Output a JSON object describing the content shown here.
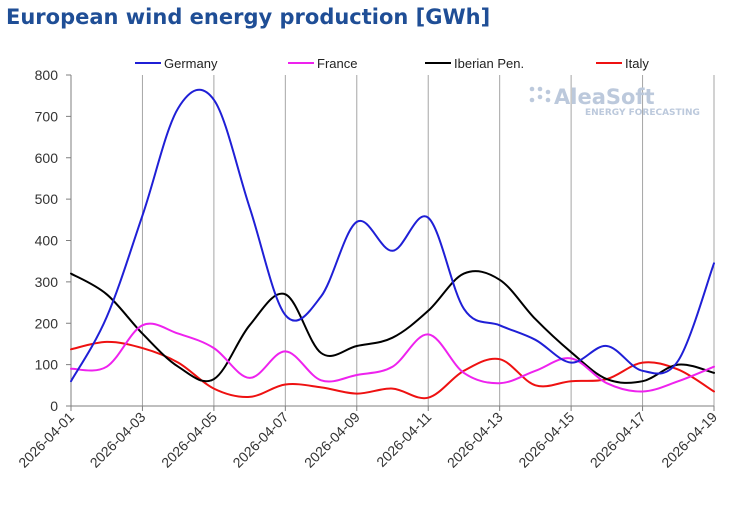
{
  "chart_data": {
    "type": "line",
    "title": "European wind energy production [GWh]",
    "xlabel": "",
    "ylabel": "",
    "ylim": [
      0,
      800
    ],
    "yticks": [
      0,
      100,
      200,
      300,
      400,
      500,
      600,
      700,
      800
    ],
    "xrange": [
      0,
      18
    ],
    "grid": "vertical",
    "legend_position": "top",
    "x_tick_labels": [
      "2026-04-01",
      "2026-04-03",
      "2026-04-05",
      "2026-04-07",
      "2026-04-09",
      "2026-04-11",
      "2026-04-13",
      "2026-04-15",
      "2026-04-17",
      "2026-04-19"
    ],
    "x": [
      0,
      1,
      2,
      3,
      4,
      5,
      6,
      7,
      8,
      9,
      10,
      11,
      12,
      13,
      14,
      15,
      16,
      17,
      18
    ],
    "series": [
      {
        "name": "Germany",
        "color": "#1f1fd6",
        "values": [
          60,
          215,
          460,
          720,
          740,
          480,
          220,
          265,
          445,
          375,
          455,
          235,
          195,
          160,
          105,
          145,
          85,
          110,
          345
        ]
      },
      {
        "name": "France",
        "color": "#ee22ee",
        "values": [
          90,
          95,
          195,
          175,
          140,
          68,
          132,
          62,
          75,
          95,
          173,
          80,
          55,
          85,
          115,
          55,
          35,
          60,
          95
        ]
      },
      {
        "name": "Iberian Pen.",
        "color": "#000000",
        "values": [
          320,
          270,
          175,
          95,
          65,
          195,
          270,
          128,
          145,
          165,
          230,
          320,
          305,
          210,
          130,
          65,
          60,
          100,
          80
        ]
      },
      {
        "name": "Italy",
        "color": "#ee1111",
        "values": [
          137,
          155,
          140,
          105,
          42,
          22,
          52,
          45,
          30,
          42,
          20,
          85,
          113,
          50,
          60,
          65,
          105,
          88,
          35
        ]
      }
    ]
  },
  "logo": {
    "name": "AleaSoft",
    "tagline": "ENERGY FORECASTING"
  }
}
